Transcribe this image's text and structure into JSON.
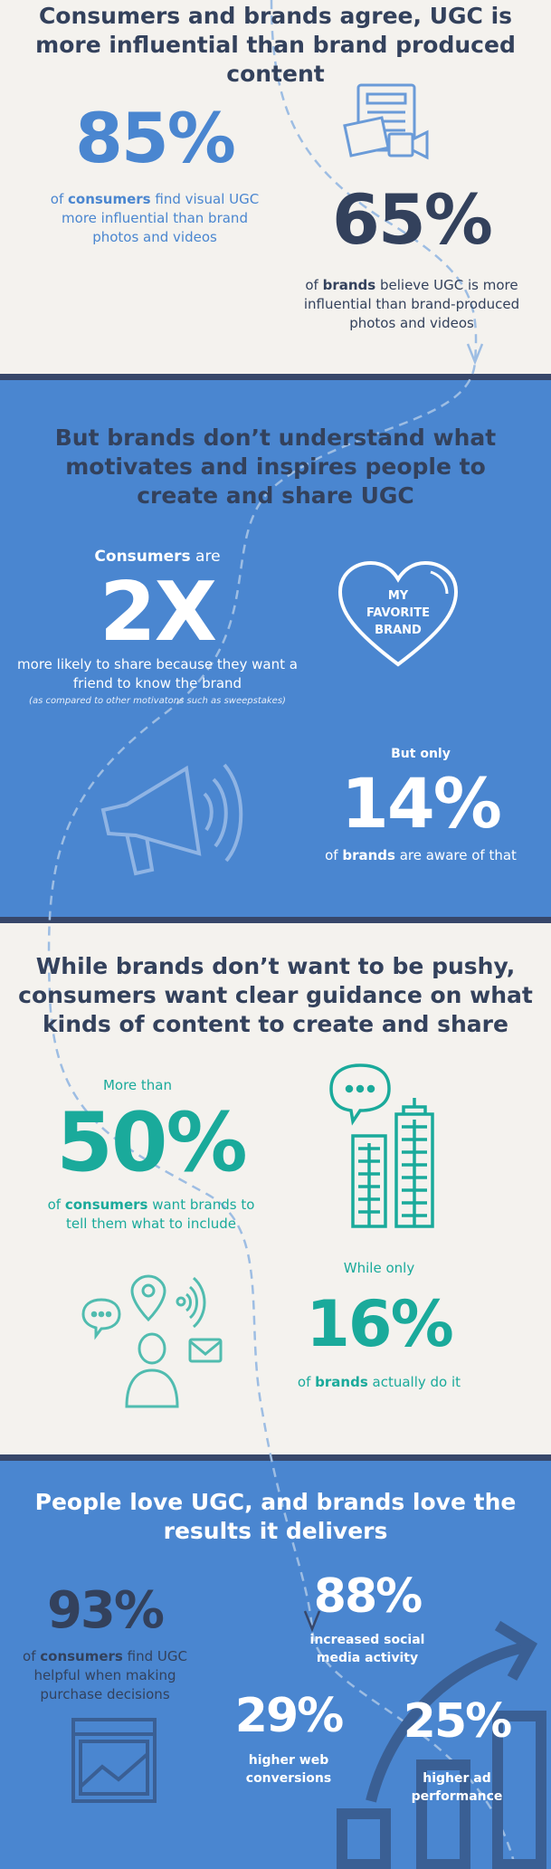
{
  "sections": [
    {
      "title": "Consumers and brands agree, UGC is more influential than brand produced content",
      "stats": [
        {
          "value": "85%",
          "text": [
            "of ",
            "consumers",
            " find visual UGC more influential than brand photos and videos"
          ]
        },
        {
          "value": "65%",
          "text": [
            "of ",
            "brands",
            " believe UGC is more influential than brand-produced photos and videos"
          ]
        }
      ]
    },
    {
      "title": "But brands don’t understand what motivates and inspires people to create and share UGC",
      "icon_label": "MY FAVORITE BRAND",
      "stats": [
        {
          "lead": [
            "Consumers",
            " are"
          ],
          "value": "2X",
          "text": "more likely to share because they want a friend to know the brand",
          "note": "(as compared to other motivatons such as sweepstakes)"
        },
        {
          "lead": "But only",
          "value": "14%",
          "text": [
            "of ",
            "brands",
            " are aware of that"
          ]
        }
      ]
    },
    {
      "title": "While brands don’t want to be pushy, consumers want clear guidance on what kinds of content to create and share",
      "stats": [
        {
          "lead": "More than",
          "value": "50%",
          "text": [
            "of ",
            "consumers",
            " want brands to tell them what to include"
          ]
        },
        {
          "lead": "While only",
          "value": "16%",
          "text": [
            "of ",
            "brands",
            " actually do it"
          ]
        }
      ]
    },
    {
      "title": "People love UGC, and brands love the results it delivers",
      "stats": [
        {
          "value": "93%",
          "text": [
            "of ",
            "consumers",
            " find UGC helpful when making purchase decisions"
          ]
        },
        {
          "value": "88%",
          "text": "increased social media activity"
        },
        {
          "value": "29%",
          "text": "higher web conversions"
        },
        {
          "value": "25%",
          "text": "higher ad performance"
        }
      ]
    }
  ]
}
